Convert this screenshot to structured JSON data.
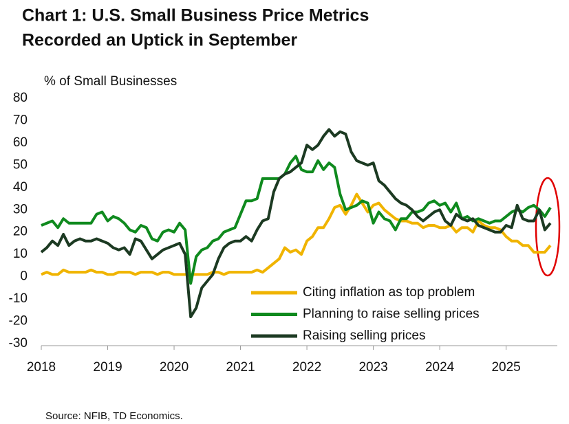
{
  "chart_data": {
    "type": "line",
    "title": [
      "Chart 1: U.S. Small Business Price Metrics",
      "Recorded an Uptick in September"
    ],
    "y_label": "% of Small Businesses",
    "source": "Source: NFIB, TD Economics.",
    "x": [
      2018,
      2018.083,
      2018.167,
      2018.25,
      2018.333,
      2018.417,
      2018.5,
      2018.583,
      2018.667,
      2018.75,
      2018.833,
      2018.917,
      2019,
      2019.083,
      2019.167,
      2019.25,
      2019.333,
      2019.417,
      2019.5,
      2019.583,
      2019.667,
      2019.75,
      2019.833,
      2019.917,
      2020,
      2020.083,
      2020.167,
      2020.25,
      2020.333,
      2020.417,
      2020.5,
      2020.583,
      2020.667,
      2020.75,
      2020.833,
      2020.917,
      2021,
      2021.083,
      2021.167,
      2021.25,
      2021.333,
      2021.417,
      2021.5,
      2021.583,
      2021.667,
      2021.75,
      2021.833,
      2021.917,
      2022,
      2022.083,
      2022.167,
      2022.25,
      2022.333,
      2022.417,
      2022.5,
      2022.583,
      2022.667,
      2022.75,
      2022.833,
      2022.917,
      2023,
      2023.083,
      2023.167,
      2023.25,
      2023.333,
      2023.417,
      2023.5,
      2023.583,
      2023.667,
      2023.75,
      2023.833,
      2023.917,
      2024,
      2024.083,
      2024.167,
      2024.25,
      2024.333,
      2024.417,
      2024.5,
      2024.583,
      2024.667,
      2024.75,
      2024.833,
      2024.917,
      2025,
      2025.083,
      2025.167,
      2025.25,
      2025.333,
      2025.417,
      2025.5,
      2025.583,
      2025.667
    ],
    "series": [
      {
        "name": "Citing inflation as top problem",
        "color": "#f0b400",
        "values": [
          1,
          2,
          1,
          1,
          3,
          2,
          2,
          2,
          2,
          3,
          2,
          2,
          1,
          1,
          2,
          2,
          2,
          1,
          2,
          2,
          2,
          1,
          2,
          2,
          1,
          1,
          1,
          1,
          1,
          1,
          1,
          2,
          2,
          1,
          2,
          2,
          2,
          2,
          2,
          3,
          2,
          4,
          6,
          8,
          13,
          11,
          12,
          10,
          16,
          18,
          22,
          22,
          26,
          31,
          32,
          28,
          32,
          37,
          33,
          29,
          32,
          33,
          30,
          28,
          26,
          25,
          25,
          24,
          24,
          22,
          23,
          23,
          22,
          22,
          23,
          20,
          22,
          22,
          20,
          25,
          23,
          22,
          22,
          21,
          18,
          16,
          16,
          14,
          14,
          11,
          11,
          11,
          14
        ]
      },
      {
        "name": "Planning to raise selling prices",
        "color": "#0f8a1e",
        "values": [
          23,
          24,
          25,
          22,
          26,
          24,
          24,
          24,
          24,
          24,
          28,
          29,
          25,
          27,
          26,
          24,
          21,
          20,
          23,
          22,
          17,
          16,
          20,
          21,
          20,
          24,
          21,
          -3,
          9,
          12,
          13,
          16,
          17,
          20,
          21,
          22,
          28,
          34,
          34,
          35,
          44,
          44,
          44,
          44,
          46,
          51,
          54,
          48,
          47,
          47,
          52,
          48,
          51,
          49,
          37,
          30,
          31,
          32,
          34,
          33,
          24,
          29,
          26,
          25,
          21,
          26,
          26,
          29,
          29,
          30,
          33,
          34,
          32,
          33,
          29,
          33,
          26,
          27,
          25,
          26,
          25,
          24,
          25,
          25,
          27,
          29,
          30,
          29,
          31,
          32,
          30,
          27,
          31
        ]
      },
      {
        "name": "Raising selling prices",
        "color": "#1c3a22",
        "values": [
          11,
          13,
          16,
          14,
          19,
          14,
          16,
          17,
          16,
          16,
          17,
          16,
          15,
          13,
          12,
          13,
          10,
          17,
          16,
          12,
          8,
          10,
          12,
          13,
          14,
          15,
          10,
          -18,
          -14,
          -5,
          -2,
          1,
          8,
          13,
          15,
          16,
          16,
          18,
          16,
          21,
          25,
          26,
          38,
          44,
          46,
          47,
          49,
          51,
          59,
          57,
          59,
          63,
          66,
          63,
          65,
          64,
          56,
          52,
          51,
          50,
          51,
          43,
          41,
          38,
          35,
          33,
          32,
          30,
          27,
          25,
          27,
          29,
          30,
          25,
          23,
          28,
          26,
          25,
          26,
          23,
          22,
          21,
          20,
          20,
          23,
          22,
          32,
          26,
          25,
          25,
          30,
          21,
          24
        ]
      }
    ],
    "xlim": [
      2018,
      2025.75
    ],
    "xticks": [
      2018,
      2019,
      2020,
      2021,
      2022,
      2023,
      2024,
      2025
    ],
    "ylim": [
      -30,
      80
    ],
    "yticks": [
      -30,
      -20,
      -10,
      0,
      10,
      20,
      30,
      40,
      50,
      60,
      70,
      80
    ],
    "grid": false
  }
}
